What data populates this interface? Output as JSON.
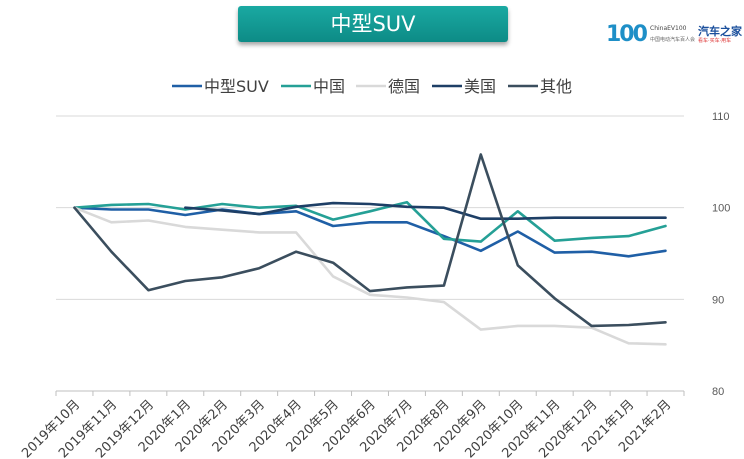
{
  "header": {
    "title": "中型SUV"
  },
  "logo": {
    "number": "100",
    "english": "ChinaEV100",
    "chinese_small": "中国电动汽车百人会",
    "brand": "汽车之家",
    "tagline": "看车·买车·用车"
  },
  "chart_data": {
    "type": "line",
    "title": "中型SUV",
    "xlabel": "",
    "ylabel": "",
    "ylim": [
      80,
      110
    ],
    "yticks": [
      80,
      90,
      100,
      110
    ],
    "y_axis_position": "right",
    "grid": true,
    "legend_position": "top",
    "categories": [
      "2019年10月",
      "2019年11月",
      "2019年12月",
      "2020年1月",
      "2020年2月",
      "2020年3月",
      "2020年4月",
      "2020年5月",
      "2020年6月",
      "2020年7月",
      "2020年8月",
      "2020年9月",
      "2020年10月",
      "2020年11月",
      "2020年12月",
      "2021年1月",
      "2021年2月"
    ],
    "series": [
      {
        "name": "中型SUV",
        "color": "#1f5fa6",
        "values": [
          100,
          99.8,
          99.8,
          99.2,
          99.8,
          99.3,
          99.6,
          98.0,
          98.4,
          98.4,
          96.9,
          95.3,
          97.4,
          95.1,
          95.2,
          94.7,
          95.3
        ]
      },
      {
        "name": "中国",
        "color": "#25a096",
        "values": [
          100,
          100.3,
          100.4,
          99.8,
          100.4,
          100.0,
          100.2,
          98.7,
          99.6,
          100.6,
          96.6,
          96.3,
          99.6,
          96.4,
          96.7,
          96.9,
          98.0
        ]
      },
      {
        "name": "德国",
        "color": "#d9d9d9",
        "values": [
          100,
          98.4,
          98.6,
          97.9,
          97.6,
          97.3,
          97.3,
          92.5,
          90.5,
          90.2,
          89.7,
          86.7,
          87.1,
          87.1,
          86.9,
          85.2,
          85.1
        ]
      },
      {
        "name": "美国",
        "color": "#1e3f66",
        "values": [
          null,
          null,
          null,
          100.0,
          99.7,
          99.3,
          100.1,
          100.5,
          100.4,
          100.1,
          100.0,
          98.8,
          98.8,
          98.9,
          98.9,
          98.9,
          98.9
        ]
      },
      {
        "name": "其他",
        "color": "#3b4e5e",
        "values": [
          100,
          95.2,
          91.0,
          92.0,
          92.4,
          93.4,
          95.2,
          94.0,
          90.9,
          91.3,
          91.5,
          105.8,
          93.7,
          90.1,
          87.1,
          87.2,
          87.5
        ]
      }
    ]
  }
}
